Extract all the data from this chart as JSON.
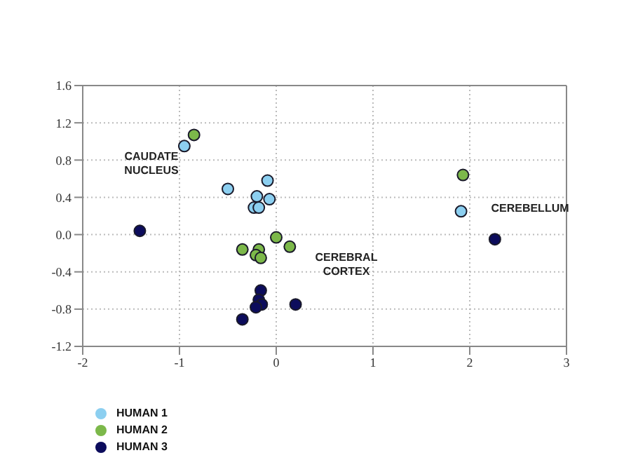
{
  "chart_data": {
    "type": "scatter",
    "xlim": [
      -2,
      3
    ],
    "xticks": [
      -2,
      -1,
      0,
      1,
      2,
      3
    ],
    "ylim": [
      -1.2,
      1.6
    ],
    "yticks": [
      {
        "value": -1.2,
        "label": "-1.2"
      },
      {
        "value": -0.8,
        "label": "-0.8"
      },
      {
        "value": -0.4,
        "label": "-0.4"
      },
      {
        "value": 0,
        "label": "0.0"
      },
      0.4,
      0.8,
      1.2,
      1.6
    ],
    "grid": true,
    "marker": "circle",
    "legend": "bottom left",
    "series": [
      {
        "name": "HUMAN 1",
        "color": "#8ccff0",
        "x": [
          -0.95,
          -0.5,
          -0.09,
          -0.2,
          -0.07,
          -0.23,
          -0.18,
          1.91
        ],
        "values": [
          0.95,
          0.49,
          0.58,
          0.41,
          0.38,
          0.29,
          0.29,
          0.25
        ]
      },
      {
        "name": "HUMAN 2",
        "color": "#7cb84a",
        "x": [
          -0.85,
          1.93,
          0.0,
          0.14,
          -0.35,
          -0.18,
          -0.21,
          -0.16
        ],
        "values": [
          1.07,
          0.64,
          -0.03,
          -0.13,
          -0.16,
          -0.16,
          -0.22,
          -0.25
        ]
      },
      {
        "name": "HUMAN 3",
        "color": "#0c0c5c",
        "x": [
          -1.41,
          2.26,
          -0.16,
          -0.18,
          -0.15,
          -0.21,
          0.2,
          -0.35
        ],
        "values": [
          0.04,
          -0.05,
          -0.6,
          -0.7,
          -0.75,
          -0.78,
          -0.75,
          -0.91
        ]
      }
    ],
    "annotations": [
      "CAUDATE NUCLEUS",
      "CEREBRAL CORTEX",
      "CEREBELLUM"
    ]
  }
}
